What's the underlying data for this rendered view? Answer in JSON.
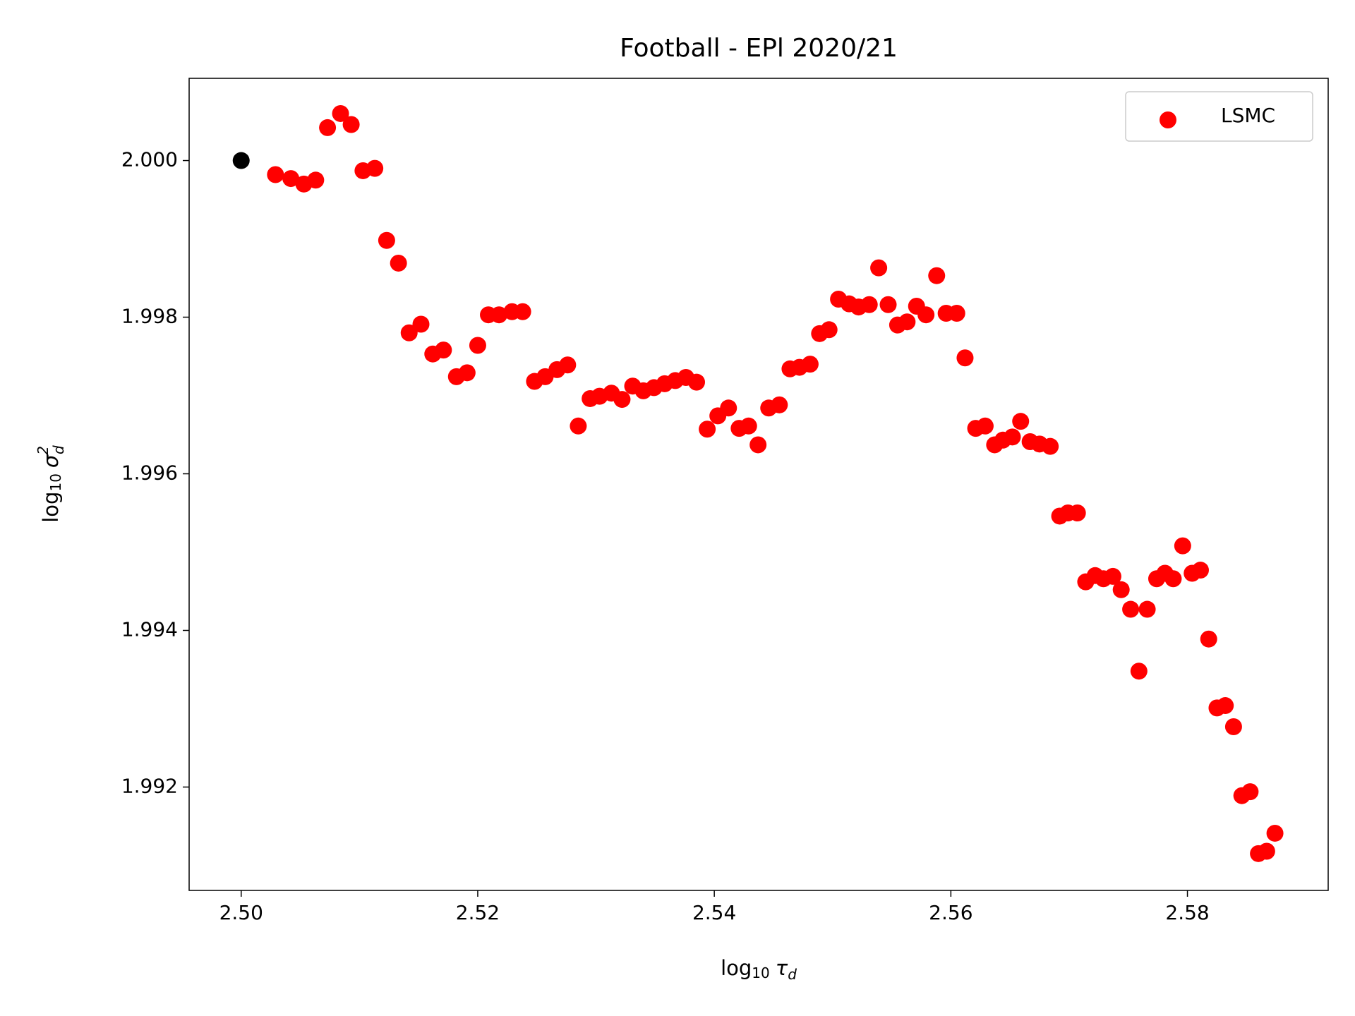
{
  "chart_data": {
    "type": "scatter",
    "title": "Football - EPl 2020/21",
    "xlabel": {
      "base": "log",
      "sub": "10",
      "var": "τ",
      "var_sub": "d"
    },
    "ylabel": {
      "base": "log",
      "sub": "10",
      "var": "σ",
      "var_sub": "d",
      "var_sup": "2"
    },
    "xlim": [
      2.4956,
      2.5919
    ],
    "ylim": [
      1.99068,
      2.00105
    ],
    "xticks": [
      {
        "value": 2.5,
        "label": "2.50"
      },
      {
        "value": 2.52,
        "label": "2.52"
      },
      {
        "value": 2.54,
        "label": "2.54"
      },
      {
        "value": 2.56,
        "label": "2.56"
      },
      {
        "value": 2.58,
        "label": "2.58"
      }
    ],
    "yticks": [
      {
        "value": 1.992,
        "label": "1.992"
      },
      1.994,
      1.996,
      1.998,
      {
        "value": 2.0,
        "label": "2.000"
      }
    ],
    "grid": false,
    "legend": "upper right",
    "series": [
      {
        "name": "LSMC",
        "color": "#ff0000",
        "x": [
          2.5029,
          2.5042,
          2.5053,
          2.5063,
          2.5073,
          2.5084,
          2.5093,
          2.5103,
          2.5113,
          2.5123,
          2.5133,
          2.5142,
          2.5152,
          2.5162,
          2.5171,
          2.5182,
          2.5191,
          2.52,
          2.5209,
          2.5218,
          2.5229,
          2.5238,
          2.5248,
          2.5257,
          2.5267,
          2.5276,
          2.5285,
          2.5295,
          2.5303,
          2.5313,
          2.5322,
          2.5331,
          2.534,
          2.5349,
          2.5358,
          2.5367,
          2.5376,
          2.5385,
          2.5394,
          2.5403,
          2.5412,
          2.5421,
          2.5429,
          2.5437,
          2.5446,
          2.5455,
          2.5464,
          2.5472,
          2.5481,
          2.5489,
          2.5497,
          2.5505,
          2.5514,
          2.5522,
          2.5531,
          2.5539,
          2.5547,
          2.5555,
          2.5563,
          2.5571,
          2.5579,
          2.5588,
          2.5596,
          2.5605,
          2.5612,
          2.5621,
          2.5629,
          2.5637,
          2.5644,
          2.5652,
          2.5659,
          2.5667,
          2.5675,
          2.5684,
          2.5692,
          2.5699,
          2.5707,
          2.5714,
          2.5722,
          2.5729,
          2.5737,
          2.5744,
          2.5752,
          2.5759,
          2.5766,
          2.5774,
          2.5781,
          2.5788,
          2.5796,
          2.5804,
          2.5811,
          2.5818,
          2.5825,
          2.5832,
          2.5839,
          2.5846,
          2.5853,
          2.586,
          2.5867,
          2.5874
        ],
        "values": [
          1.99982,
          1.99977,
          1.9997,
          1.99975,
          2.00042,
          2.0006,
          2.00046,
          1.99987,
          1.9999,
          1.99898,
          1.99869,
          1.9978,
          1.99791,
          1.99753,
          1.99758,
          1.99724,
          1.99729,
          1.99764,
          1.99803,
          1.99803,
          1.99807,
          1.99807,
          1.99718,
          1.99724,
          1.99733,
          1.99739,
          1.99661,
          1.99696,
          1.99699,
          1.99703,
          1.99695,
          1.99712,
          1.99706,
          1.9971,
          1.99715,
          1.99719,
          1.99723,
          1.99717,
          1.99657,
          1.99674,
          1.99684,
          1.99658,
          1.99661,
          1.99637,
          1.99684,
          1.99688,
          1.99734,
          1.99736,
          1.9974,
          1.99779,
          1.99784,
          1.99823,
          1.99817,
          1.99813,
          1.99816,
          1.99863,
          1.99816,
          1.9979,
          1.99794,
          1.99814,
          1.99803,
          1.99853,
          1.99805,
          1.99805,
          1.99748,
          1.99658,
          1.99661,
          1.99637,
          1.99643,
          1.99647,
          1.99667,
          1.99641,
          1.99638,
          1.99635,
          1.99546,
          1.9955,
          1.9955,
          1.99462,
          1.9947,
          1.99466,
          1.99469,
          1.99452,
          1.99427,
          1.99348,
          1.99427,
          1.99466,
          1.99473,
          1.99466,
          1.99508,
          1.99473,
          1.99477,
          1.99389,
          1.99301,
          1.99304,
          1.99277,
          1.99189,
          1.99194,
          1.99115,
          1.99118,
          1.99141
        ]
      },
      {
        "color": "#000000",
        "x": [
          2.5
        ],
        "values": [
          2.0
        ]
      }
    ]
  }
}
